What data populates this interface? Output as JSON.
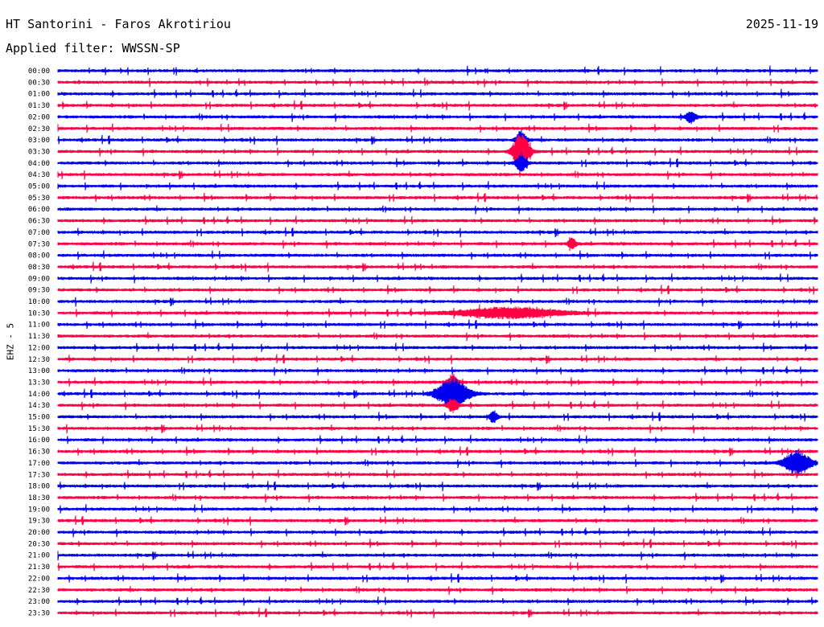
{
  "header": {
    "title": "HT Santorini - Faros Akrotiriou",
    "date": "2025-11-19",
    "filter_label": "Applied filter: WWSSN-SP"
  },
  "channel_label": "EHZ - 5",
  "colors": {
    "trace_a": "#0000ee",
    "trace_b": "#ff0044",
    "background": "#ffffff"
  },
  "chart_data": {
    "type": "helicorder",
    "ylabel": "EHZ - 5",
    "row_interval_minutes": 30,
    "rows": [
      "00:00",
      "00:30",
      "01:00",
      "01:30",
      "02:00",
      "02:30",
      "03:00",
      "03:30",
      "04:00",
      "04:30",
      "05:00",
      "05:30",
      "06:00",
      "06:30",
      "07:00",
      "07:30",
      "08:00",
      "08:30",
      "09:00",
      "09:30",
      "10:00",
      "10:30",
      "11:00",
      "11:30",
      "12:00",
      "12:30",
      "13:00",
      "13:30",
      "14:00",
      "14:30",
      "15:00",
      "15:30",
      "16:00",
      "16:30",
      "17:00",
      "17:30",
      "18:00",
      "18:30",
      "19:00",
      "19:30",
      "20:00",
      "20:30",
      "21:00",
      "21:30",
      "22:00",
      "22:30",
      "23:00",
      "23:30"
    ],
    "trace_colors": [
      "#0000ee",
      "#ff0044"
    ],
    "events": [
      {
        "row": "03:30",
        "minute": 18.3,
        "amplitude": 1.7,
        "duration_min": 0.6
      },
      {
        "row": "03:00",
        "minute": 18.3,
        "amplitude": 0.8,
        "duration_min": 0.4
      },
      {
        "row": "04:00",
        "minute": 18.3,
        "amplitude": 0.8,
        "duration_min": 0.4
      },
      {
        "row": "14:00",
        "minute": 15.6,
        "amplitude": 1.3,
        "duration_min": 1.2
      },
      {
        "row": "13:30",
        "minute": 15.6,
        "amplitude": 0.7,
        "duration_min": 0.4
      },
      {
        "row": "14:30",
        "minute": 15.6,
        "amplitude": 0.6,
        "duration_min": 0.4
      },
      {
        "row": "17:00",
        "minute": 29.2,
        "amplitude": 1.0,
        "duration_min": 1.0
      },
      {
        "row": "10:30",
        "minute": 17.8,
        "amplitude": 0.45,
        "duration_min": 4.0
      },
      {
        "row": "02:00",
        "minute": 25.0,
        "amplitude": 0.5,
        "duration_min": 0.4
      },
      {
        "row": "15:00",
        "minute": 17.2,
        "amplitude": 0.5,
        "duration_min": 0.3
      },
      {
        "row": "07:30",
        "minute": 20.3,
        "amplitude": 0.5,
        "duration_min": 0.3
      }
    ]
  }
}
